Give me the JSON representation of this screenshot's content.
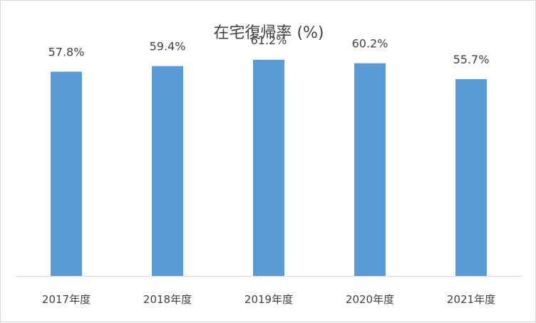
{
  "chart_data": {
    "type": "bar",
    "title": "在宅復帰率 (%)",
    "categories": [
      "2017年度",
      "2018年度",
      "2019年度",
      "2020年度",
      "2021年度"
    ],
    "values": [
      57.8,
      59.4,
      61.2,
      60.2,
      55.7
    ],
    "data_labels": [
      "57.8%",
      "59.4%",
      "61.2%",
      "60.2%",
      "55.7%"
    ],
    "xlabel": "",
    "ylabel": "",
    "ylim": [
      0,
      66
    ],
    "grid": false,
    "bar_color": "#5b9bd5",
    "axis_color": "#d9d9d9",
    "text_color": "#404040"
  }
}
